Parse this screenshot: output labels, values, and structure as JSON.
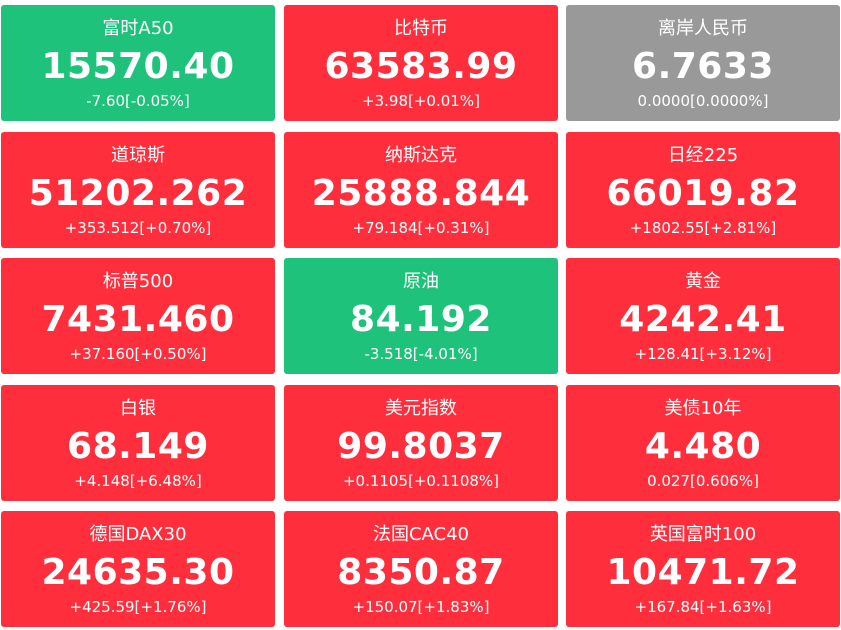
{
  "colors": {
    "up": "#fe2e3c",
    "down": "#1ec27a",
    "flat": "#999999",
    "text": "#ffffff"
  },
  "tiles": [
    {
      "name": "富时A50",
      "price": "15570.40",
      "change": "-7.60[-0.05%]",
      "status": "down"
    },
    {
      "name": "比特币",
      "price": "63583.99",
      "change": "+3.98[+0.01%]",
      "status": "up"
    },
    {
      "name": "离岸人民币",
      "price": "6.7633",
      "change": "0.0000[0.0000%]",
      "status": "flat"
    },
    {
      "name": "道琼斯",
      "price": "51202.262",
      "change": "+353.512[+0.70%]",
      "status": "up"
    },
    {
      "name": "纳斯达克",
      "price": "25888.844",
      "change": "+79.184[+0.31%]",
      "status": "up"
    },
    {
      "name": "日经225",
      "price": "66019.82",
      "change": "+1802.55[+2.81%]",
      "status": "up"
    },
    {
      "name": "标普500",
      "price": "7431.460",
      "change": "+37.160[+0.50%]",
      "status": "up"
    },
    {
      "name": "原油",
      "price": "84.192",
      "change": "-3.518[-4.01%]",
      "status": "down"
    },
    {
      "name": "黄金",
      "price": "4242.41",
      "change": "+128.41[+3.12%]",
      "status": "up"
    },
    {
      "name": "白银",
      "price": "68.149",
      "change": "+4.148[+6.48%]",
      "status": "up"
    },
    {
      "name": "美元指数",
      "price": "99.8037",
      "change": "+0.1105[+0.1108%]",
      "status": "up"
    },
    {
      "name": "美债10年",
      "price": "4.480",
      "change": "0.027[0.606%]",
      "status": "up"
    },
    {
      "name": "德国DAX30",
      "price": "24635.30",
      "change": "+425.59[+1.76%]",
      "status": "up"
    },
    {
      "name": "法国CAC40",
      "price": "8350.87",
      "change": "+150.07[+1.83%]",
      "status": "up"
    },
    {
      "name": "英国富时100",
      "price": "10471.72",
      "change": "+167.84[+1.63%]",
      "status": "up"
    }
  ]
}
